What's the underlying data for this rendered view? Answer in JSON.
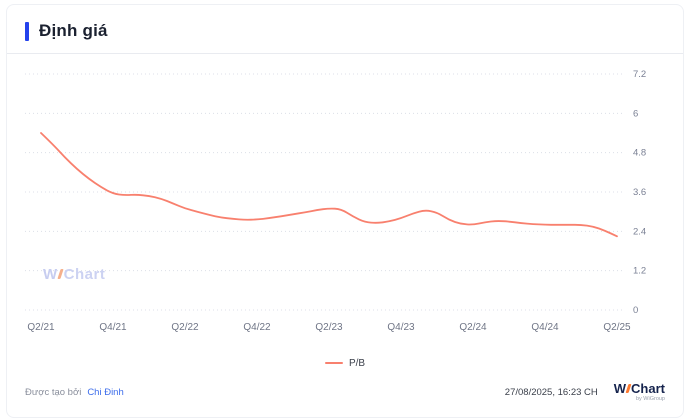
{
  "header": {
    "title": "Định giá",
    "accent_color": "#2442ec"
  },
  "chart_data": {
    "type": "line",
    "title": "Định giá",
    "x_tick_labels": [
      "Q2/21",
      "Q4/21",
      "Q2/22",
      "Q4/22",
      "Q2/23",
      "Q4/23",
      "Q2/24",
      "Q4/24",
      "Q2/25"
    ],
    "y_ticks": [
      0,
      1.2,
      2.4,
      3.6,
      4.8,
      6,
      7.2
    ],
    "ylim": [
      0,
      7.2
    ],
    "grid": "horizontal-dotted",
    "y_axis_position": "right",
    "legend_position": "bottom-center",
    "series": [
      {
        "name": "P/B",
        "color": "#f8806e",
        "values": [
          5.4,
          5.05,
          4.65,
          4.3,
          4.0,
          3.75,
          3.55,
          3.5,
          3.52,
          3.48,
          3.4,
          3.25,
          3.1,
          3.0,
          2.9,
          2.82,
          2.78,
          2.75,
          2.76,
          2.8,
          2.86,
          2.92,
          2.98,
          3.05,
          3.1,
          3.08,
          2.85,
          2.68,
          2.65,
          2.7,
          2.8,
          2.95,
          3.05,
          2.98,
          2.75,
          2.62,
          2.6,
          2.68,
          2.72,
          2.7,
          2.65,
          2.62,
          2.6,
          2.6,
          2.6,
          2.6,
          2.55,
          2.42,
          2.25
        ]
      }
    ]
  },
  "watermark": {
    "w": "W",
    "rest": "Chart"
  },
  "legend": {
    "label": "P/B"
  },
  "footer": {
    "created_by_label": "Được tạo bởi",
    "author": "Chi Đinh",
    "timestamp": "27/08/2025, 16:23 CH",
    "logo_w": "W",
    "logo_rest": "Chart",
    "logo_sub": "by WiGroup"
  }
}
